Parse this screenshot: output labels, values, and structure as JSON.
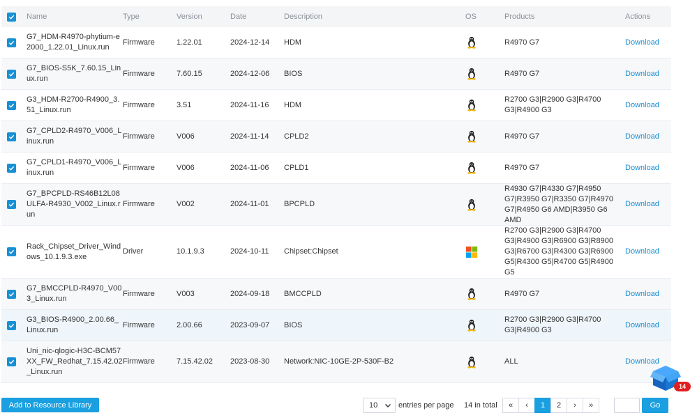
{
  "columns": {
    "name": "Name",
    "type": "Type",
    "version": "Version",
    "date": "Date",
    "description": "Description",
    "os": "OS",
    "products": "Products",
    "actions": "Actions"
  },
  "rows": [
    {
      "name": "G7_HDM-R4970-phytium-e2000_1.22.01_Linux.run",
      "type": "Firmware",
      "version": "1.22.01",
      "date": "2024-12-14",
      "description": "HDM",
      "os": "linux-icon",
      "products": "R4970 G7",
      "action": "Download"
    },
    {
      "name": "G7_BIOS-S5K_7.60.15_Linux.run",
      "type": "Firmware",
      "version": "7.60.15",
      "date": "2024-12-06",
      "description": "BIOS",
      "os": "linux-icon",
      "products": "R4970 G7",
      "action": "Download"
    },
    {
      "name": "G3_HDM-R2700-R4900_3.51_Linux.run",
      "type": "Firmware",
      "version": "3.51",
      "date": "2024-11-16",
      "description": "HDM",
      "os": "linux-icon",
      "products": "R2700 G3|R2900 G3|R4700 G3|R4900 G3",
      "action": "Download"
    },
    {
      "name": "G7_CPLD2-R4970_V006_Linux.run",
      "type": "Firmware",
      "version": "V006",
      "date": "2024-11-14",
      "description": "CPLD2",
      "os": "linux-icon",
      "products": "R4970 G7",
      "action": "Download"
    },
    {
      "name": "G7_CPLD1-R4970_V006_Linux.run",
      "type": "Firmware",
      "version": "V006",
      "date": "2024-11-06",
      "description": "CPLD1",
      "os": "linux-icon",
      "products": "R4970 G7",
      "action": "Download"
    },
    {
      "name": "G7_BPCPLD-RS46B12L08ULFA-R4930_V002_Linux.run",
      "type": "Firmware",
      "version": "V002",
      "date": "2024-11-01",
      "description": "BPCPLD",
      "os": "linux-icon",
      "products": "R4930 G7|R4330 G7|R4950 G7|R3950 G7|R3350 G7|R4970 G7|R4950 G6 AMD|R3950 G6 AMD",
      "action": "Download"
    },
    {
      "name": "Rack_Chipset_Driver_Windows_10.1.9.3.exe",
      "type": "Driver",
      "version": "10.1.9.3",
      "date": "2024-10-11",
      "description": "Chipset:Chipset",
      "os": "windows-icon",
      "products": "R2700 G3|R2900 G3|R4700 G3|R4900 G3|R6900 G3|R8900 G3|R6700 G3|R4300 G3|R6900 G5|R4300 G5|R4700 G5|R4900 G5",
      "action": "Download"
    },
    {
      "name": "G7_BMCCPLD-R4970_V003_Linux.run",
      "type": "Firmware",
      "version": "V003",
      "date": "2024-09-18",
      "description": "BMCCPLD",
      "os": "linux-icon",
      "products": "R4970 G7",
      "action": "Download"
    },
    {
      "name": "G3_BIOS-R4900_2.00.66_Linux.run",
      "type": "Firmware",
      "version": "2.00.66",
      "date": "2023-09-07",
      "description": "BIOS",
      "os": "linux-icon",
      "products": "R2700 G3|R2900 G3|R4700 G3|R4900 G3",
      "action": "Download"
    },
    {
      "name": "Uni_nic-qlogic-H3C-BCM57XX_FW_Redhat_7.15.42.02_Linux.run",
      "type": "Firmware",
      "version": "7.15.42.02",
      "date": "2023-08-30",
      "description": "Network:NIC-10GE-2P-530F-B2",
      "os": "linux-icon",
      "products": "ALL",
      "action": "Download"
    }
  ],
  "footer": {
    "add_label": "Add to Resource Library",
    "per_page_value": "10",
    "per_page_label": "entries per page",
    "total_label": "14 in total",
    "pages": [
      "«",
      "‹",
      "1",
      "2",
      "›",
      "»"
    ],
    "active_page": "1",
    "goto_value": "",
    "go_label": "Go"
  },
  "cart": {
    "count": "14"
  },
  "colors": {
    "accent": "#1a9fe0",
    "link": "#1a8fd4",
    "badge": "#e02020"
  }
}
